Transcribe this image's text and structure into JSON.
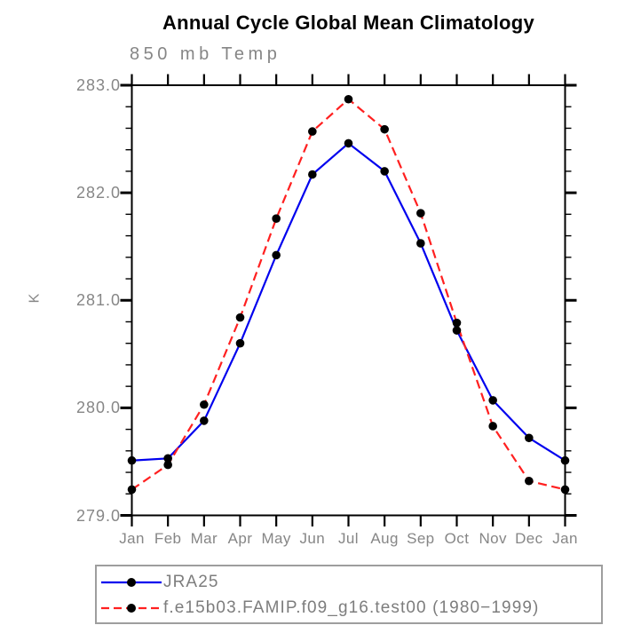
{
  "chart_data": {
    "type": "line",
    "title": "Annual Cycle Global Mean Climatology",
    "subtitle": "850 mb Temp",
    "ylabel": "K",
    "xlabel": "",
    "grid": false,
    "legend_position": "bottom-left",
    "x_categories": [
      "Jan",
      "Feb",
      "Mar",
      "Apr",
      "May",
      "Jun",
      "Jul",
      "Aug",
      "Sep",
      "Oct",
      "Nov",
      "Dec",
      "Jan"
    ],
    "ylim": [
      279.0,
      283.0
    ],
    "ytick_major": 1.0,
    "ytick_minor": 0.2,
    "ytick_labels": [
      "279.0",
      "280.0",
      "281.0",
      "282.0",
      "283.0"
    ],
    "series": [
      {
        "name": "JRA25",
        "color": "#0000ee",
        "style": "solid",
        "marker": "filled-circle",
        "marker_color": "#000000",
        "values": [
          279.51,
          279.53,
          279.88,
          280.6,
          281.42,
          282.17,
          282.46,
          282.2,
          281.53,
          280.72,
          280.07,
          279.72,
          279.51
        ]
      },
      {
        "name": "f.e15b03.FAMIP.f09_g16.test00 (1980−1999)",
        "color": "#ff2020",
        "style": "dashed",
        "marker": "filled-circle",
        "marker_color": "#000000",
        "values": [
          279.24,
          279.47,
          280.03,
          280.84,
          281.76,
          282.57,
          282.87,
          282.59,
          281.81,
          280.79,
          279.83,
          279.32,
          279.24
        ]
      }
    ],
    "colors": {
      "axis": "#000000",
      "text_gray": "#868686",
      "legend_border": "#9e9e9e"
    }
  }
}
